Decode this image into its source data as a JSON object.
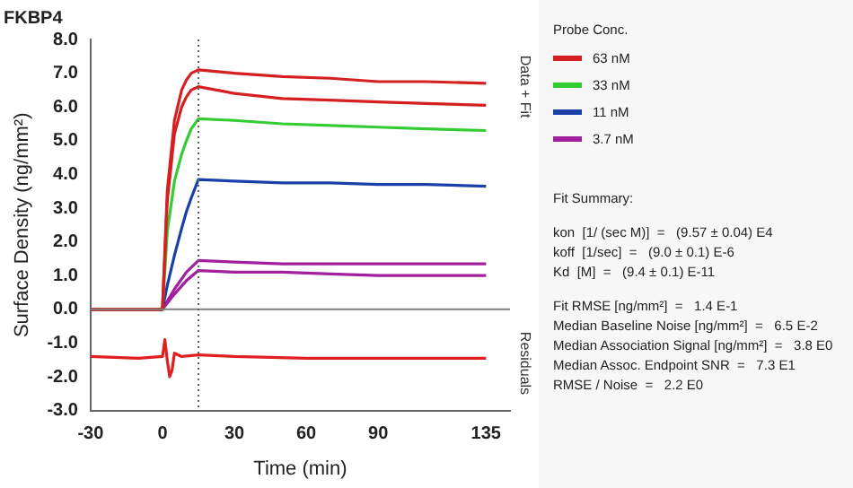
{
  "chart_data": {
    "type": "line",
    "title": "FKBP4",
    "xlabel": "Time (min)",
    "ylabel": "Surface Density (ng/mm²)",
    "legend_title": "Probe Conc.",
    "legend": "right",
    "marker": "none",
    "line_style": "solid",
    "grid": false,
    "xlim": [
      -30,
      145
    ],
    "xticks": [
      -30,
      0,
      30,
      60,
      90,
      135
    ],
    "ylim": [
      -3,
      8
    ],
    "yticks": [
      {
        "value": -3,
        "label": "-3.0"
      },
      {
        "value": -2,
        "label": "-2.0"
      },
      {
        "value": -1,
        "label": "-1.0"
      },
      {
        "value": 0,
        "label": "0.0"
      },
      {
        "value": 1,
        "label": "1.0"
      },
      {
        "value": 2,
        "label": "2.0"
      },
      {
        "value": 3,
        "label": "3.0"
      },
      {
        "value": 4,
        "label": "4.0"
      },
      {
        "value": 5,
        "label": "5.0"
      },
      {
        "value": 6,
        "label": "6.0"
      },
      {
        "value": 7,
        "label": "7.0"
      },
      {
        "value": 8,
        "label": "8.0"
      }
    ],
    "ref_lines": [
      {
        "axis": "y",
        "value": 0,
        "color": "#808080",
        "line_style": "solid"
      },
      {
        "axis": "x",
        "value": 15,
        "color": "#606060",
        "line_style": "dotted"
      }
    ],
    "series": [
      {
        "name": "63 nM",
        "color": "#d42020",
        "x": [
          -30,
          0,
          2,
          5,
          8,
          10,
          12,
          15,
          30,
          50,
          70,
          90,
          110,
          135
        ],
        "values": [
          0,
          0,
          3.5,
          5.6,
          6.5,
          6.8,
          7,
          7.1,
          7,
          6.9,
          6.85,
          6.75,
          6.75,
          6.7
        ]
      },
      {
        "color": "#d42020",
        "x": [
          -30,
          0,
          2,
          5,
          8,
          10,
          12,
          15,
          30,
          50,
          70,
          90,
          110,
          135
        ],
        "values": [
          0,
          0,
          3.2,
          5.2,
          6,
          6.3,
          6.5,
          6.6,
          6.4,
          6.25,
          6.2,
          6.15,
          6.1,
          6.05
        ]
      },
      {
        "name": "33 nM",
        "color": "#33cc33",
        "x": [
          -30,
          0,
          2,
          5,
          8,
          10,
          12,
          15,
          30,
          50,
          70,
          90,
          110,
          135
        ],
        "values": [
          0,
          0,
          2.3,
          3.8,
          4.6,
          5,
          5.35,
          5.65,
          5.6,
          5.5,
          5.45,
          5.4,
          5.35,
          5.3
        ]
      },
      {
        "name": "11 nM",
        "color": "#1a3fa8",
        "x": [
          -30,
          0,
          2,
          5,
          8,
          10,
          12,
          15,
          30,
          50,
          70,
          90,
          110,
          135
        ],
        "values": [
          0,
          0,
          0.7,
          1.6,
          2.4,
          2.9,
          3.3,
          3.85,
          3.8,
          3.75,
          3.75,
          3.7,
          3.7,
          3.65
        ]
      },
      {
        "name": "3.7 nM",
        "color": "#a020a0",
        "x": [
          -30,
          0,
          5,
          10,
          15,
          30,
          50,
          70,
          90,
          110,
          135
        ],
        "values": [
          0,
          0,
          0.6,
          1.1,
          1.45,
          1.4,
          1.35,
          1.35,
          1.35,
          1.35,
          1.35
        ]
      },
      {
        "color": "#a020a0",
        "x": [
          -30,
          0,
          5,
          10,
          15,
          30,
          50,
          70,
          90,
          110,
          135
        ],
        "values": [
          0,
          0,
          0.45,
          0.85,
          1.15,
          1.1,
          1.1,
          1.05,
          1.0,
          1.0,
          1.0
        ]
      },
      {
        "color": "#e02020",
        "x": [
          -30,
          -10,
          0,
          1,
          2,
          3,
          4,
          5,
          8,
          15,
          30,
          60,
          90,
          135
        ],
        "values": [
          -1.4,
          -1.45,
          -1.4,
          -0.9,
          -1.5,
          -2.0,
          -1.8,
          -1.3,
          -1.4,
          -1.35,
          -1.4,
          -1.45,
          -1.45,
          -1.45
        ]
      }
    ],
    "annotations": [
      "Data + Fit",
      "Residuals",
      "Fit Summary:",
      "kon  [1/ (sec M)]  =   (9.57 ± 0.04) E4",
      "koff  [1/sec]  =   (9.0 ± 0.1) E-6",
      "Kd  [M]  =   (9.4 ± 0.1) E-11",
      "Fit RMSE [ng/mm²]  =   1.4 E-1",
      "Median Baseline Noise [ng/mm²]  =   6.5 E-2",
      "Median Association Signal [ng/mm²]  =   3.8 E0",
      "Median Assoc. Endpoint SNR  =   7.3 E1",
      "RMSE / Noise  =   2.2 E0"
    ]
  }
}
